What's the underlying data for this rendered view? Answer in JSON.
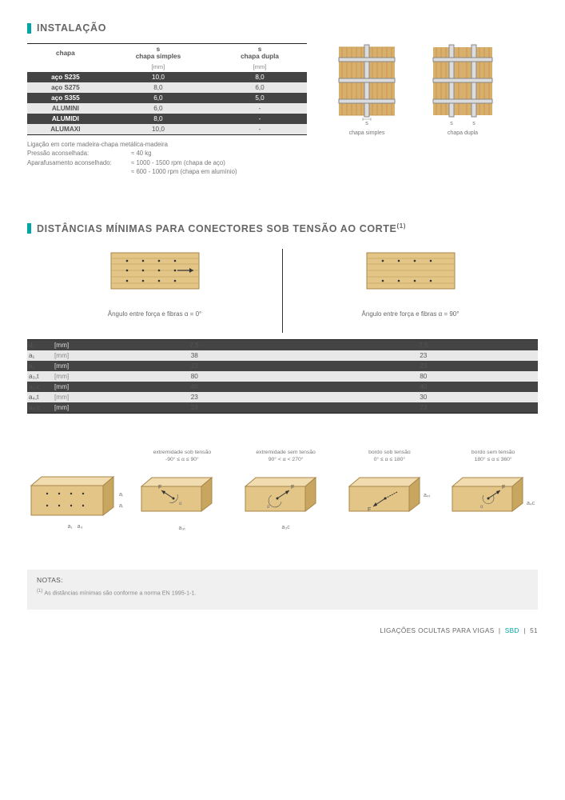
{
  "section1": {
    "title": "INSTALAÇÃO",
    "headers": {
      "c1": "chapa",
      "c2": "s\nchapa simples",
      "c3": "s\nchapa dupla",
      "unit": "[mm]"
    },
    "rows": [
      {
        "label": "aço S235",
        "a": "10,0",
        "b": "8,0",
        "cls": "r-dark"
      },
      {
        "label": "aço S275",
        "a": "8,0",
        "b": "6,0",
        "cls": "r-light"
      },
      {
        "label": "aço S355",
        "a": "6,0",
        "b": "5,0",
        "cls": "r-dark"
      },
      {
        "label": "ALUMINI",
        "a": "6,0",
        "b": "-",
        "cls": "r-light"
      },
      {
        "label": "ALUMIDI",
        "a": "8,0",
        "b": "-",
        "cls": "r-dark"
      },
      {
        "label": "ALUMAXI",
        "a": "10,0",
        "b": "-",
        "cls": "r-light"
      }
    ],
    "under": {
      "l1": "Ligação em corte madeira-chapa metálica-madeira",
      "l2k": "Pressão aconselhada:",
      "l2v": "≈ 40 kg",
      "l3k": "Aparafusamento aconselhado:",
      "l3v1": "≈ 1000 - 1500 rpm (chapa de aço)",
      "l3v2": "≈ 600 - 1000 rpm (chapa em alumínio)"
    },
    "plate_labels": {
      "a": "chapa simples",
      "b": "chapa dupla",
      "s": "s"
    },
    "plate_colors": {
      "wood": "#d9af6d",
      "woodline": "#c99a4e",
      "steel": "#dcdcdc",
      "steelline": "#888888"
    }
  },
  "section2": {
    "title": "DISTÂNCIAS MÍNIMAS PARA CONECTORES SOB TENSÃO AO CORTE",
    "sup": "(1)",
    "angle_a": "Ângulo entre força e fibras α = 0°",
    "angle_b": "Ângulo entre força e fibras α = 90°",
    "rows": [
      {
        "p": "d₁",
        "u": "[mm]",
        "a": "7,5",
        "b": "7,5",
        "cls": "r-dark"
      },
      {
        "p": "a₁",
        "u": "[mm]",
        "a": "38",
        "b": "23",
        "cls": "r-light"
      },
      {
        "p": "a₂",
        "u": "[mm]",
        "a": "23",
        "b": "23",
        "cls": "r-dark"
      },
      {
        "p": "a₃,t",
        "u": "[mm]",
        "a": "80",
        "b": "80",
        "cls": "r-light"
      },
      {
        "p": "a₃,c",
        "u": "[mm]",
        "a": "40",
        "b": "40",
        "cls": "r-dark"
      },
      {
        "p": "a₄,t",
        "u": "[mm]",
        "a": "23",
        "b": "30",
        "cls": "r-light"
      },
      {
        "p": "a₄,c",
        "u": "[mm]",
        "a": "23",
        "b": "23",
        "cls": "r-dark"
      }
    ],
    "blocks": {
      "b1": {
        "cap1": "",
        "cap2": "",
        "lab": "a₁",
        "lab2": "a₃"
      },
      "b2": {
        "cap1": "extremidade sob tensão",
        "cap2": "-90° ≤ α ≤ 90°",
        "lab": "a₃ₜ"
      },
      "b3": {
        "cap1": "extremidade sem tensão",
        "cap2": "90° < α < 270°",
        "lab": "a₃c"
      },
      "b4": {
        "cap1": "bordo sob tensão",
        "cap2": "0° ≤ α ≤ 180°",
        "lab": "a₄ₜ"
      },
      "b5": {
        "cap1": "bordo sem tensão",
        "cap2": "180° ≤ α ≤ 360°",
        "lab": "a₄c"
      }
    },
    "wood3d": {
      "face": "#e2c587",
      "side": "#c9a660",
      "top": "#f0dcaf",
      "edge": "#a8864a"
    }
  },
  "notes": {
    "title": "NOTAS:",
    "line": "As distâncias mínimas são conforme a norma EN 1995-1-1.",
    "ref": "(1)"
  },
  "footer": {
    "text": "LIGAÇÕES OCULTAS PARA VIGAS",
    "code": "SBD",
    "page": "51"
  }
}
